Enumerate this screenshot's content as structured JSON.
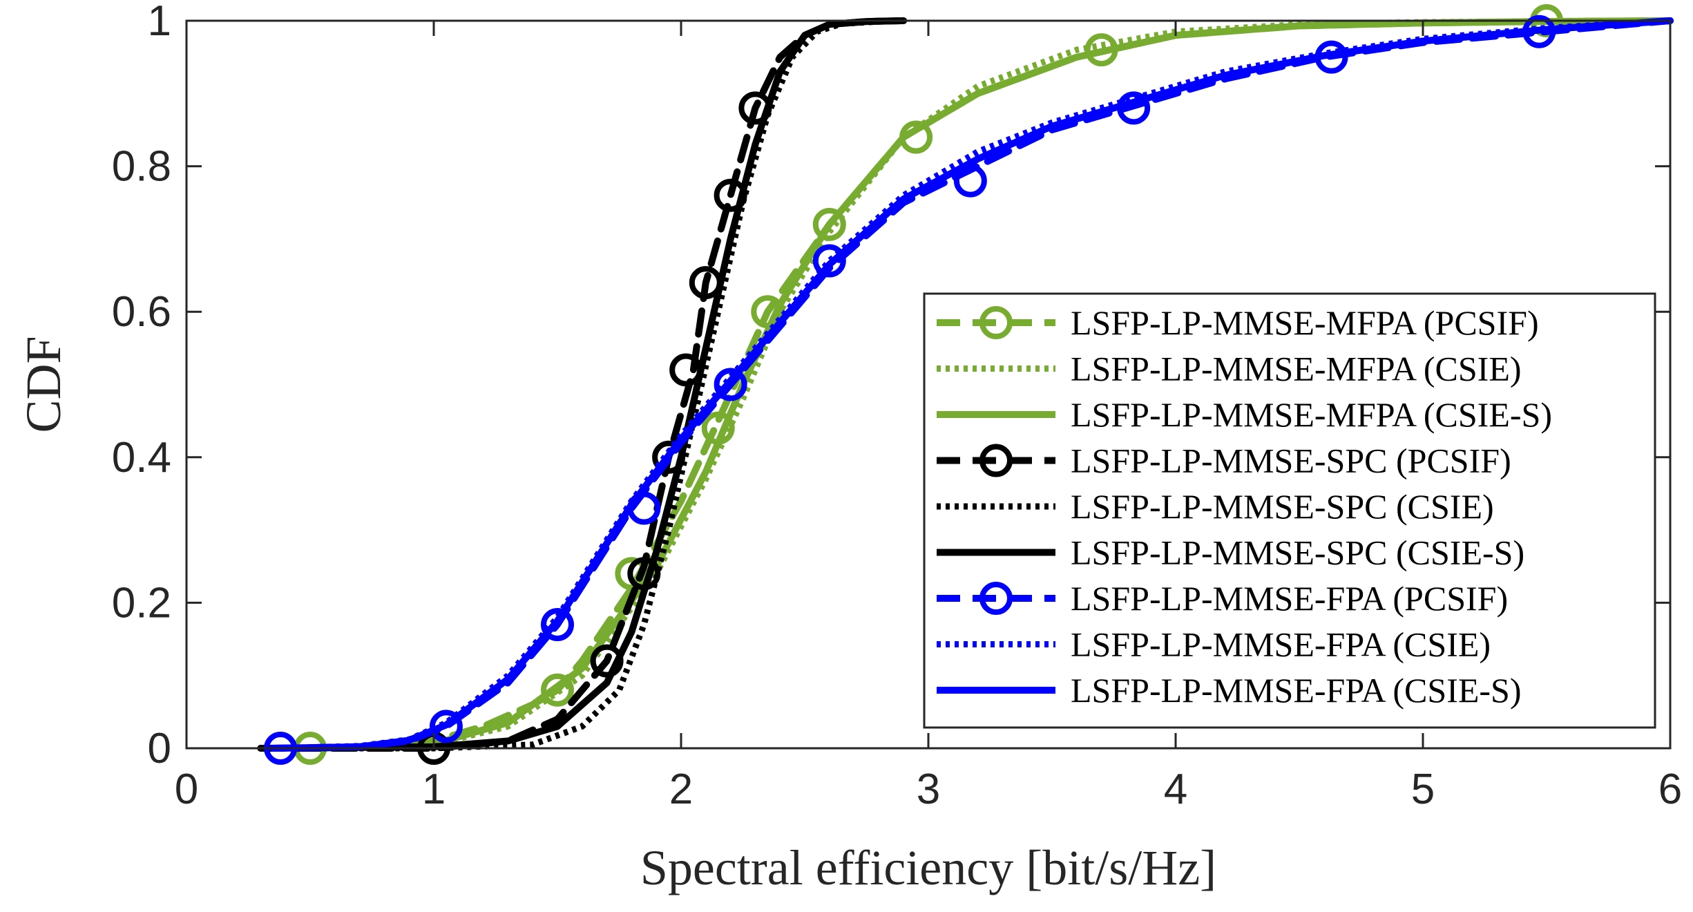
{
  "chart_data": {
    "type": "line",
    "title": "",
    "xlabel": "Spectral efficiency [bit/s/Hz]",
    "ylabel": "CDF",
    "xlim": [
      0,
      6
    ],
    "ylim": [
      0,
      1
    ],
    "xticks": [
      0,
      1,
      2,
      3,
      4,
      5,
      6
    ],
    "xtick_labels": [
      "0",
      "1",
      "2",
      "3",
      "4",
      "5",
      "6"
    ],
    "yticks": [
      0,
      0.2,
      0.4,
      0.6,
      0.8,
      1
    ],
    "ytick_labels": [
      "0",
      "0.2",
      "0.4",
      "0.6",
      "0.8",
      "1"
    ],
    "grid": false,
    "legend_position": "lower-right",
    "colors": {
      "green": "#77ac30",
      "black": "#000000",
      "blue": "#0000ff"
    },
    "series": [
      {
        "name": "LSFP-LP-MMSE-MFPA (PCSIF)",
        "color": "#77ac30",
        "style": "dashed",
        "marker": "circle",
        "x": [
          0.5,
          0.8,
          1.0,
          1.2,
          1.4,
          1.5,
          1.6,
          1.8,
          2.0,
          2.15,
          2.35,
          2.6,
          2.9,
          3.2,
          3.6,
          4.0,
          4.5,
          5.0,
          5.5,
          6.0
        ],
        "y": [
          0,
          0.002,
          0.01,
          0.03,
          0.06,
          0.08,
          0.12,
          0.22,
          0.34,
          0.45,
          0.6,
          0.72,
          0.84,
          0.9,
          0.95,
          0.98,
          0.993,
          0.997,
          0.999,
          1.0
        ],
        "markers_x": [
          0.5,
          1.5,
          1.8,
          2.15,
          2.35,
          2.6,
          2.95,
          3.7,
          5.5
        ],
        "markers_y": [
          0,
          0.08,
          0.24,
          0.44,
          0.6,
          0.72,
          0.84,
          0.96,
          1.0
        ]
      },
      {
        "name": "LSFP-LP-MMSE-MFPA (CSIE)",
        "color": "#77ac30",
        "style": "dotted",
        "marker": "none",
        "x": [
          0.5,
          1.0,
          1.3,
          1.6,
          1.9,
          2.1,
          2.25,
          2.4,
          2.6,
          2.9,
          3.2,
          3.6,
          4.0,
          4.5,
          5.0,
          5.5,
          6.0
        ],
        "y": [
          0,
          0.005,
          0.03,
          0.1,
          0.24,
          0.37,
          0.48,
          0.6,
          0.71,
          0.84,
          0.91,
          0.96,
          0.985,
          0.995,
          0.998,
          0.999,
          1.0
        ]
      },
      {
        "name": "LSFP-LP-MMSE-MFPA (CSIE-S)",
        "color": "#77ac30",
        "style": "solid",
        "marker": "none",
        "x": [
          0.5,
          1.0,
          1.3,
          1.6,
          1.9,
          2.1,
          2.25,
          2.4,
          2.6,
          2.9,
          3.2,
          3.6,
          4.0,
          4.5,
          5.0,
          5.5,
          6.0
        ],
        "y": [
          0,
          0.006,
          0.035,
          0.11,
          0.25,
          0.38,
          0.5,
          0.61,
          0.72,
          0.84,
          0.9,
          0.95,
          0.98,
          0.993,
          0.997,
          0.999,
          1.0
        ]
      },
      {
        "name": "LSFP-LP-MMSE-SPC (PCSIF)",
        "color": "#000000",
        "style": "dashed",
        "marker": "circle",
        "x": [
          0.3,
          0.8,
          1.0,
          1.3,
          1.5,
          1.7,
          1.85,
          1.95,
          2.05,
          2.1,
          2.2,
          2.3,
          2.4,
          2.5,
          2.6,
          2.75,
          2.9
        ],
        "y": [
          0,
          0.0,
          0.0,
          0.01,
          0.04,
          0.12,
          0.25,
          0.4,
          0.52,
          0.64,
          0.76,
          0.88,
          0.95,
          0.98,
          0.995,
          0.999,
          1.0
        ],
        "markers_x": [
          1.0,
          1.7,
          1.85,
          1.95,
          2.02,
          2.1,
          2.2,
          2.3
        ],
        "markers_y": [
          0,
          0.12,
          0.24,
          0.4,
          0.52,
          0.64,
          0.76,
          0.88
        ]
      },
      {
        "name": "LSFP-LP-MMSE-SPC (CSIE)",
        "color": "#000000",
        "style": "dotted",
        "marker": "none",
        "x": [
          0.3,
          1.0,
          1.4,
          1.6,
          1.75,
          1.85,
          1.95,
          2.05,
          2.15,
          2.25,
          2.35,
          2.45,
          2.55,
          2.65,
          2.8,
          2.9
        ],
        "y": [
          0,
          0.0,
          0.005,
          0.03,
          0.08,
          0.17,
          0.3,
          0.45,
          0.6,
          0.75,
          0.87,
          0.95,
          0.985,
          0.996,
          0.999,
          1.0
        ]
      },
      {
        "name": "LSFP-LP-MMSE-SPC (CSIE-S)",
        "color": "#000000",
        "style": "solid",
        "marker": "none",
        "x": [
          0.3,
          1.0,
          1.3,
          1.5,
          1.7,
          1.8,
          1.9,
          2.0,
          2.1,
          2.2,
          2.3,
          2.4,
          2.5,
          2.6,
          2.75,
          2.9
        ],
        "y": [
          0,
          0.002,
          0.01,
          0.03,
          0.09,
          0.16,
          0.27,
          0.4,
          0.55,
          0.7,
          0.83,
          0.93,
          0.98,
          0.995,
          0.999,
          1.0
        ]
      },
      {
        "name": "LSFP-LP-MMSE-FPA (PCSIF)",
        "color": "#0000ff",
        "style": "dashed",
        "marker": "circle",
        "x": [
          0.35,
          0.7,
          0.9,
          1.05,
          1.3,
          1.5,
          1.8,
          2.0,
          2.2,
          2.4,
          2.6,
          2.9,
          3.2,
          3.5,
          3.8,
          4.2,
          4.6,
          5.0,
          5.5,
          6.0
        ],
        "y": [
          0,
          0.002,
          0.01,
          0.03,
          0.09,
          0.17,
          0.33,
          0.42,
          0.5,
          0.58,
          0.66,
          0.75,
          0.8,
          0.85,
          0.88,
          0.92,
          0.95,
          0.97,
          0.985,
          1.0
        ],
        "markers_x": [
          0.38,
          1.05,
          1.5,
          1.85,
          2.2,
          2.6,
          3.17,
          3.83,
          4.63,
          5.47
        ],
        "markers_y": [
          0,
          0.03,
          0.17,
          0.33,
          0.5,
          0.67,
          0.78,
          0.88,
          0.95,
          0.985
        ]
      },
      {
        "name": "LSFP-LP-MMSE-FPA (CSIE)",
        "color": "#0000ff",
        "style": "dotted",
        "marker": "none",
        "x": [
          0.35,
          0.7,
          0.9,
          1.05,
          1.3,
          1.5,
          1.8,
          2.0,
          2.2,
          2.4,
          2.6,
          2.9,
          3.2,
          3.5,
          3.8,
          4.2,
          4.6,
          5.0,
          5.5,
          6.0
        ],
        "y": [
          0,
          0.003,
          0.012,
          0.035,
          0.1,
          0.18,
          0.34,
          0.43,
          0.51,
          0.59,
          0.67,
          0.76,
          0.82,
          0.86,
          0.89,
          0.93,
          0.955,
          0.975,
          0.99,
          1.0
        ]
      },
      {
        "name": "LSFP-LP-MMSE-FPA (CSIE-S)",
        "color": "#0000ff",
        "style": "solid",
        "marker": "none",
        "x": [
          0.35,
          0.7,
          0.9,
          1.05,
          1.3,
          1.5,
          1.8,
          2.0,
          2.2,
          2.4,
          2.6,
          2.9,
          3.2,
          3.5,
          3.8,
          4.2,
          4.6,
          5.0,
          5.5,
          6.0
        ],
        "y": [
          0,
          0.002,
          0.011,
          0.032,
          0.095,
          0.175,
          0.335,
          0.425,
          0.505,
          0.585,
          0.665,
          0.755,
          0.81,
          0.855,
          0.885,
          0.925,
          0.952,
          0.972,
          0.988,
          1.0
        ]
      }
    ]
  }
}
